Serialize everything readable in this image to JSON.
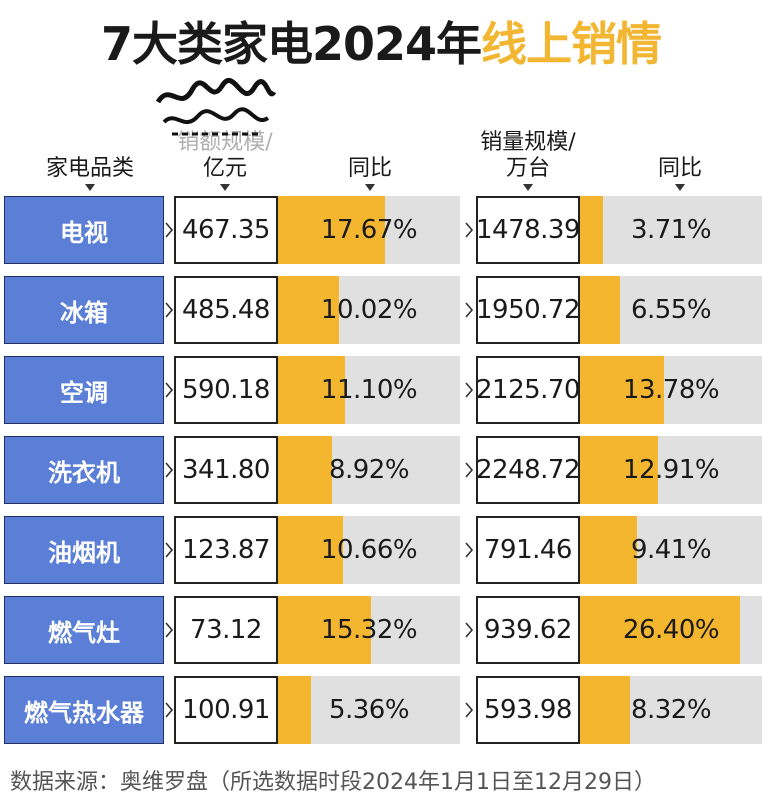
{
  "title": {
    "main": "7大类家电2024年",
    "highlight": "线上销情",
    "highlight_color": "#f2b632"
  },
  "headers": {
    "category": "家电品类",
    "sales_value": "销额规模/亿元",
    "sales_value_line1": "销额规模/",
    "sales_value_line2": "亿元",
    "yoy1": "同比",
    "volume": "销量规模/万台",
    "volume_line1": "销量规模/",
    "volume_line2": "万台",
    "yoy2": "同比"
  },
  "colors": {
    "category_fill": "#5b7fd6",
    "bar_fill": "#f4b52f",
    "bar_track": "#e0e0e0"
  },
  "chart_data": {
    "type": "table",
    "columns": [
      "家电品类",
      "销额规模/亿元",
      "同比",
      "销量规模/万台",
      "同比"
    ],
    "rows": [
      {
        "category": "电视",
        "sales_value": "467.35",
        "sales_yoy": "17.67%",
        "sales_yoy_value": 17.67,
        "volume": "1478.39",
        "volume_yoy": "3.71%",
        "volume_yoy_value": 3.71
      },
      {
        "category": "冰箱",
        "sales_value": "485.48",
        "sales_yoy": "10.02%",
        "sales_yoy_value": 10.02,
        "volume": "1950.72",
        "volume_yoy": "6.55%",
        "volume_yoy_value": 6.55
      },
      {
        "category": "空调",
        "sales_value": "590.18",
        "sales_yoy": "11.10%",
        "sales_yoy_value": 11.1,
        "volume": "2125.70",
        "volume_yoy": "13.78%",
        "volume_yoy_value": 13.78
      },
      {
        "category": "洗衣机",
        "sales_value": "341.80",
        "sales_yoy": "8.92%",
        "sales_yoy_value": 8.92,
        "volume": "2248.72",
        "volume_yoy": "12.91%",
        "volume_yoy_value": 12.91
      },
      {
        "category": "油烟机",
        "sales_value": "123.87",
        "sales_yoy": "10.66%",
        "sales_yoy_value": 10.66,
        "volume": "791.46",
        "volume_yoy": "9.41%",
        "volume_yoy_value": 9.41
      },
      {
        "category": "燃气灶",
        "sales_value": "73.12",
        "sales_yoy": "15.32%",
        "sales_yoy_value": 15.32,
        "volume": "939.62",
        "volume_yoy": "26.40%",
        "volume_yoy_value": 26.4
      },
      {
        "category": "燃气热水器",
        "sales_value": "100.91",
        "sales_yoy": "5.36%",
        "sales_yoy_value": 5.36,
        "volume": "593.98",
        "volume_yoy": "8.32%",
        "volume_yoy_value": 8.32
      }
    ]
  },
  "source": "数据来源：奥维罗盘（所选数据时段2024年1月1日至12月29日）"
}
